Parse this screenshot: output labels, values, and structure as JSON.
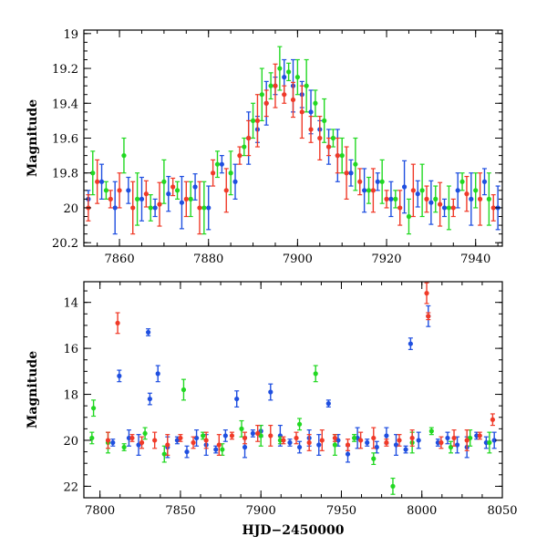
{
  "chart_data": [
    {
      "type": "scatter",
      "title": "",
      "xlabel": "",
      "ylabel": "Magnitude",
      "xlim": [
        7852,
        7946
      ],
      "ylim": [
        20.22,
        18.98
      ],
      "y_inverted": true,
      "grid": false,
      "xticks": [
        7860,
        7880,
        7900,
        7920,
        7940
      ],
      "yticks": [
        19,
        19.2,
        19.4,
        19.6,
        19.8,
        20,
        20.2
      ],
      "error_bars": true,
      "series": [
        {
          "color": "#1f4fe0",
          "x": [
            7853,
            7856,
            7859,
            7862,
            7865,
            7868,
            7871,
            7874,
            7877,
            7880,
            7883,
            7886,
            7889,
            7891,
            7893,
            7895,
            7897,
            7899,
            7901,
            7903,
            7905,
            7907,
            7909,
            7912,
            7915,
            7918,
            7921,
            7924,
            7927,
            7930,
            7933,
            7936,
            7939,
            7942,
            7945
          ],
          "y": [
            19.95,
            19.85,
            20.0,
            19.9,
            19.95,
            20.0,
            19.92,
            19.97,
            19.88,
            20.0,
            19.75,
            19.85,
            19.6,
            19.55,
            19.4,
            19.3,
            19.25,
            19.3,
            19.35,
            19.45,
            19.55,
            19.65,
            19.7,
            19.8,
            19.9,
            19.85,
            19.95,
            19.88,
            19.92,
            19.97,
            20.0,
            19.9,
            19.95,
            19.85,
            20.0
          ]
        },
        {
          "color": "#22d822",
          "x": [
            7854,
            7857,
            7861,
            7864,
            7867,
            7870,
            7873,
            7876,
            7879,
            7882,
            7885,
            7888,
            7890,
            7892,
            7894,
            7896,
            7898,
            7900,
            7902,
            7904,
            7906,
            7908,
            7910,
            7913,
            7916,
            7919,
            7922,
            7925,
            7928,
            7931,
            7934,
            7937,
            7940,
            7943
          ],
          "y": [
            19.8,
            19.9,
            19.7,
            19.95,
            20.0,
            19.85,
            19.9,
            19.95,
            20.0,
            19.75,
            19.8,
            19.65,
            19.5,
            19.35,
            19.3,
            19.2,
            19.22,
            19.25,
            19.3,
            19.4,
            19.5,
            19.6,
            19.7,
            19.75,
            19.9,
            19.85,
            19.95,
            20.05,
            19.9,
            19.95,
            20.0,
            19.85,
            19.9,
            19.95
          ]
        },
        {
          "color": "#f03a28",
          "x": [
            7853,
            7855,
            7858,
            7860,
            7863,
            7866,
            7869,
            7872,
            7875,
            7878,
            7881,
            7884,
            7887,
            7889,
            7891,
            7893,
            7895,
            7897,
            7899,
            7901,
            7903,
            7905,
            7907,
            7909,
            7911,
            7914,
            7917,
            7920,
            7923,
            7926,
            7929,
            7932,
            7935,
            7938,
            7941,
            7944
          ],
          "y": [
            20.0,
            19.85,
            19.95,
            19.9,
            20.0,
            19.92,
            19.98,
            19.88,
            19.95,
            20.0,
            19.8,
            19.9,
            19.7,
            19.6,
            19.5,
            19.4,
            19.3,
            19.35,
            19.38,
            19.45,
            19.55,
            19.6,
            19.65,
            19.7,
            19.8,
            19.85,
            19.9,
            19.95,
            20.0,
            19.9,
            19.95,
            19.98,
            20.0,
            19.92,
            19.95,
            20.0
          ]
        }
      ]
    },
    {
      "type": "scatter",
      "title": "",
      "xlabel": "HJD−2450000",
      "ylabel": "Magnitude",
      "xlim": [
        7790,
        8050
      ],
      "ylim": [
        22.5,
        13.1
      ],
      "y_inverted": true,
      "grid": false,
      "xticks": [
        7800,
        7850,
        7900,
        7950,
        8000,
        8050
      ],
      "yticks": [
        14,
        16,
        18,
        20,
        22
      ],
      "error_bars": true,
      "series": [
        {
          "color": "#1f4fe0",
          "x": [
            7808,
            7812,
            7818,
            7824,
            7830,
            7831,
            7836,
            7842,
            7848,
            7854,
            7860,
            7866,
            7872,
            7878,
            7885,
            7890,
            7895,
            7900,
            7906,
            7912,
            7918,
            7924,
            7930,
            7936,
            7942,
            7948,
            7954,
            7960,
            7966,
            7972,
            7978,
            7984,
            7990,
            7993,
            7998,
            8004,
            8010,
            8016,
            8022,
            8028,
            8034,
            8040,
            8045
          ],
          "y": [
            20.1,
            17.2,
            19.9,
            20.2,
            15.3,
            18.2,
            17.1,
            20.3,
            20.0,
            20.5,
            19.9,
            20.2,
            20.4,
            19.8,
            18.2,
            20.3,
            19.7,
            19.6,
            17.9,
            19.8,
            20.1,
            20.3,
            19.9,
            20.2,
            18.4,
            20.0,
            20.6,
            19.9,
            20.1,
            20.3,
            19.8,
            20.2,
            20.4,
            15.8,
            20.0,
            14.6,
            20.1,
            19.9,
            20.2,
            20.3,
            19.8,
            20.1,
            20.0
          ]
        },
        {
          "color": "#22d822",
          "x": [
            7795,
            7796,
            7805,
            7815,
            7828,
            7840,
            7852,
            7864,
            7876,
            7888,
            7900,
            7912,
            7924,
            7934,
            7946,
            7958,
            7970,
            7982,
            7994,
            8006,
            8018,
            8030,
            8042
          ],
          "y": [
            19.9,
            18.6,
            20.1,
            20.3,
            19.7,
            20.6,
            17.8,
            19.8,
            20.4,
            19.5,
            19.8,
            20.0,
            19.3,
            17.1,
            20.2,
            19.9,
            20.8,
            22.0,
            20.1,
            19.6,
            20.3,
            19.9,
            20.1
          ]
        },
        {
          "color": "#f03a28",
          "x": [
            7805,
            7811,
            7820,
            7826,
            7834,
            7842,
            7850,
            7858,
            7866,
            7874,
            7882,
            7890,
            7898,
            7906,
            7914,
            7922,
            7930,
            7938,
            7946,
            7954,
            7962,
            7970,
            7978,
            7986,
            7994,
            8003,
            8004,
            8012,
            8020,
            8028,
            8036,
            8044
          ],
          "y": [
            20.0,
            14.9,
            19.9,
            20.1,
            20.0,
            20.2,
            19.9,
            20.1,
            20.0,
            20.2,
            19.8,
            19.9,
            19.7,
            19.8,
            20.0,
            19.9,
            20.1,
            20.0,
            19.9,
            20.2,
            20.0,
            19.9,
            20.1,
            20.0,
            19.9,
            13.6,
            14.6,
            20.1,
            19.9,
            20.0,
            19.8,
            19.1
          ]
        }
      ]
    }
  ]
}
